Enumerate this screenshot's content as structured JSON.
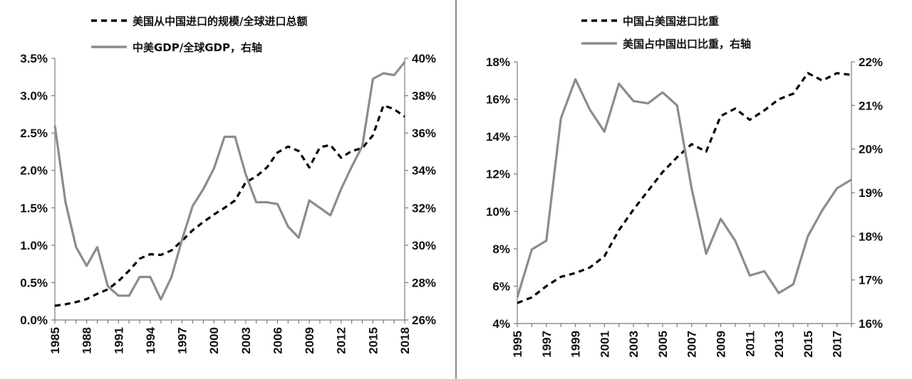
{
  "chart_data": [
    {
      "type": "line",
      "x_ticks": [
        "1985",
        "1988",
        "1991",
        "1994",
        "1997",
        "2000",
        "2003",
        "2006",
        "2009",
        "2012",
        "2015",
        "2018"
      ],
      "y_left_ticks": [
        "0.0%",
        "0.5%",
        "1.0%",
        "1.5%",
        "2.0%",
        "2.5%",
        "3.0%",
        "3.5%"
      ],
      "y_right_ticks": [
        "26%",
        "28%",
        "30%",
        "32%",
        "34%",
        "36%",
        "38%",
        "40%"
      ],
      "ylim_left": [
        0,
        3.5
      ],
      "ylim_right": [
        26,
        40
      ],
      "xlim": [
        1985,
        2018
      ],
      "grid": false,
      "legend_position": "top",
      "series": [
        {
          "name": "美国从中国进口的规模/全球进口总额",
          "axis": "left",
          "style": "dashed",
          "color": "#000000",
          "x": [
            1985,
            1986,
            1987,
            1988,
            1989,
            1990,
            1991,
            1992,
            1993,
            1994,
            1995,
            1996,
            1997,
            1998,
            1999,
            2000,
            2001,
            2002,
            2003,
            2004,
            2005,
            2006,
            2007,
            2008,
            2009,
            2010,
            2011,
            2012,
            2013,
            2014,
            2015,
            2016,
            2017,
            2018
          ],
          "values": [
            0.19,
            0.21,
            0.24,
            0.28,
            0.35,
            0.41,
            0.52,
            0.66,
            0.82,
            0.88,
            0.87,
            0.93,
            1.06,
            1.2,
            1.31,
            1.41,
            1.5,
            1.6,
            1.84,
            1.92,
            2.04,
            2.24,
            2.32,
            2.26,
            2.04,
            2.31,
            2.34,
            2.17,
            2.26,
            2.3,
            2.47,
            2.87,
            2.82,
            2.72
          ]
        },
        {
          "name": "中美GDP/全球GDP，右轴",
          "axis": "right",
          "style": "solid",
          "color": "#8c8c8c",
          "x": [
            1985,
            1986,
            1987,
            1988,
            1989,
            1990,
            1991,
            1992,
            1993,
            1994,
            1995,
            1996,
            1997,
            1998,
            1999,
            2000,
            2001,
            2002,
            2003,
            2004,
            2005,
            2006,
            2007,
            2008,
            2009,
            2010,
            2011,
            2012,
            2013,
            2014,
            2015,
            2016,
            2017,
            2018
          ],
          "values": [
            36.4,
            32.3,
            29.9,
            28.9,
            29.9,
            27.8,
            27.3,
            27.3,
            28.3,
            28.3,
            27.1,
            28.3,
            30.3,
            32.1,
            33.0,
            34.1,
            35.8,
            35.8,
            33.8,
            32.3,
            32.3,
            32.2,
            31.0,
            30.4,
            32.4,
            32.0,
            31.6,
            33.0,
            34.2,
            35.3,
            38.9,
            39.2,
            39.1,
            39.8
          ]
        }
      ]
    },
    {
      "type": "line",
      "x_ticks": [
        "1995",
        "1997",
        "1999",
        "2001",
        "2003",
        "2005",
        "2007",
        "2009",
        "2011",
        "2013",
        "2015",
        "2017"
      ],
      "y_left_ticks": [
        "4%",
        "6%",
        "8%",
        "10%",
        "12%",
        "14%",
        "16%",
        "18%"
      ],
      "y_right_ticks": [
        "16%",
        "17%",
        "18%",
        "19%",
        "20%",
        "21%",
        "22%"
      ],
      "ylim_left": [
        4,
        18
      ],
      "ylim_right": [
        16,
        22
      ],
      "xlim": [
        1995,
        2018
      ],
      "grid": false,
      "legend_position": "top",
      "series": [
        {
          "name": "中国占美国进口比重",
          "axis": "left",
          "style": "dashed",
          "color": "#000000",
          "x": [
            1995,
            1996,
            1997,
            1998,
            1999,
            2000,
            2001,
            2002,
            2003,
            2004,
            2005,
            2006,
            2007,
            2008,
            2009,
            2010,
            2011,
            2012,
            2013,
            2014,
            2015,
            2016,
            2017,
            2018
          ],
          "values": [
            5.1,
            5.4,
            6.0,
            6.5,
            6.7,
            7.0,
            7.6,
            9.0,
            10.1,
            11.1,
            12.1,
            12.9,
            13.6,
            13.2,
            15.1,
            15.5,
            14.9,
            15.4,
            16.0,
            16.3,
            17.4,
            17.0,
            17.4,
            17.3
          ]
        },
        {
          "name": "美国占中国出口比重，右轴",
          "axis": "right",
          "style": "solid",
          "color": "#8c8c8c",
          "x": [
            1995,
            1996,
            1997,
            1998,
            1999,
            2000,
            2001,
            2002,
            2003,
            2004,
            2005,
            2006,
            2007,
            2008,
            2009,
            2010,
            2011,
            2012,
            2013,
            2014,
            2015,
            2016,
            2017,
            2018
          ],
          "values": [
            16.6,
            17.7,
            17.9,
            20.7,
            21.6,
            20.9,
            20.4,
            21.5,
            21.1,
            21.05,
            21.3,
            21.0,
            19.1,
            17.6,
            18.4,
            17.9,
            17.1,
            17.2,
            16.7,
            16.9,
            18.0,
            18.6,
            19.1,
            19.3
          ]
        }
      ]
    }
  ]
}
